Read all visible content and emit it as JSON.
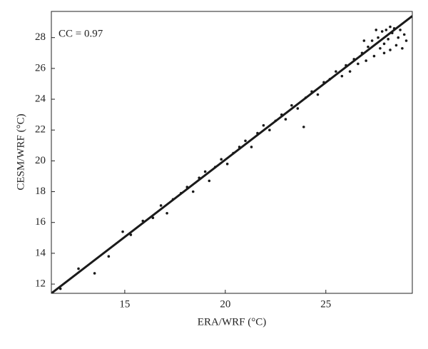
{
  "chart_data": {
    "type": "scatter",
    "xlabel": "ERA/WRF (°C)",
    "ylabel": "CESM/WRF (°C)",
    "annotation": "CC = 0.97",
    "color": "#1a1a1a",
    "x": [
      11.8,
      12.7,
      13.5,
      14.2,
      14.9,
      15.3,
      15.9,
      16.4,
      16.8,
      17.1,
      17.4,
      17.8,
      18.1,
      18.4,
      18.7,
      19.0,
      19.2,
      19.5,
      19.8,
      20.1,
      20.4,
      20.7,
      21.0,
      21.3,
      21.6,
      21.9,
      22.2,
      22.5,
      22.8,
      23.0,
      23.3,
      23.6,
      23.9,
      24.0,
      24.3,
      24.6,
      24.9,
      25.2,
      25.5,
      25.8,
      26.0,
      26.2,
      26.4,
      26.6,
      26.8,
      27.0,
      27.1,
      27.3,
      27.4,
      27.6,
      27.7,
      27.8,
      27.9,
      28.0,
      28.1,
      28.2,
      28.3,
      28.4,
      28.5,
      28.6,
      28.7,
      28.8,
      28.9,
      29.0,
      27.5,
      28.2,
      26.9,
      27.9
    ],
    "values": [
      11.7,
      13.0,
      12.7,
      13.8,
      15.4,
      15.2,
      16.1,
      16.3,
      17.1,
      16.6,
      17.5,
      17.9,
      18.3,
      18.0,
      18.9,
      19.3,
      18.7,
      19.6,
      20.1,
      19.8,
      20.5,
      20.9,
      21.3,
      20.9,
      21.8,
      22.3,
      22.0,
      22.6,
      23.0,
      22.7,
      23.6,
      23.4,
      22.2,
      24.1,
      24.5,
      24.3,
      25.1,
      25.3,
      25.8,
      25.5,
      26.2,
      25.8,
      26.6,
      26.3,
      27.0,
      26.5,
      27.4,
      27.8,
      26.8,
      28.0,
      27.3,
      28.4,
      27.6,
      28.5,
      27.9,
      27.2,
      28.3,
      28.6,
      27.5,
      28.0,
      28.5,
      27.3,
      28.2,
      27.8,
      28.5,
      28.7,
      27.8,
      27.0
    ],
    "fit_line": {
      "x": [
        11.35,
        29.3
      ],
      "y": [
        11.4,
        29.4
      ]
    },
    "xlim": [
      11.35,
      29.3
    ],
    "ylim": [
      11.4,
      29.7
    ],
    "xticks": [
      15,
      20,
      25
    ],
    "yticks": [
      12,
      14,
      16,
      18,
      20,
      22,
      24,
      26,
      28
    ]
  }
}
